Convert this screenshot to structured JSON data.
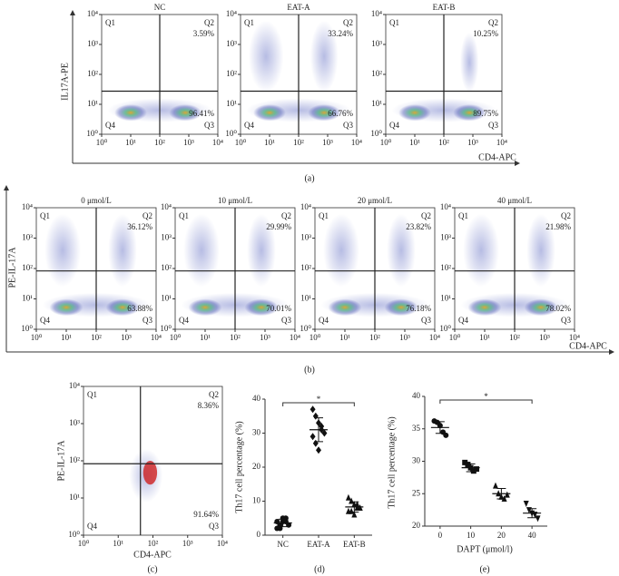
{
  "quadrants": [
    "Q1",
    "Q2",
    "Q3",
    "Q4"
  ],
  "log_lim": [
    1,
    10000
  ],
  "log_ticks": [
    {
      "value": 1,
      "label": "10⁰"
    },
    {
      "value": 10,
      "label": "10¹"
    },
    {
      "value": 100,
      "label": "10²"
    },
    {
      "value": 1000,
      "label": "10³"
    },
    {
      "value": 10000,
      "label": "10⁴"
    }
  ],
  "row_a": {
    "y_label": "IL17A-PE",
    "x_label": "CD4-APC",
    "caption": "(a)",
    "plots": [
      {
        "title": "NC",
        "q2": "3.59%",
        "q3": "96.41%"
      },
      {
        "title": "EAT-A",
        "q2": "33.24%",
        "q3": "66.76%"
      },
      {
        "title": "EAT-B",
        "q2": "10.25%",
        "q3": "89.75%"
      }
    ]
  },
  "row_b": {
    "y_label": "PE-IL-17A",
    "x_label": "CD4-APC",
    "caption": "(b)",
    "plots": [
      {
        "title": "0 μmol/L",
        "q2": "36.12%",
        "q3": "63.88%"
      },
      {
        "title": "10 μmol/L",
        "q2": "29.99%",
        "q3": "70.01%"
      },
      {
        "title": "20 μmol/L",
        "q2": "23.82%",
        "q3": "76.18%"
      },
      {
        "title": "40 μmol/L",
        "q2": "21.98%",
        "q3": "78.02%"
      }
    ]
  },
  "panel_c": {
    "y_label": "PE-IL-17A",
    "x_label": "CD4-APC",
    "caption": "(c)",
    "q2": "8.36%",
    "q3": "91.64%"
  },
  "panel_d": {
    "type": "scatter",
    "y_label": "Th17 cell percentage (%)",
    "caption": "(d)",
    "annotation": "*",
    "ylim": [
      0,
      40
    ],
    "yticks": [
      0,
      10,
      20,
      30,
      40
    ],
    "groups": [
      {
        "name": "NC",
        "values": [
          2,
          3,
          4,
          5,
          3,
          4,
          2,
          5,
          4
        ],
        "mean": 3.6,
        "sd": 1.1
      },
      {
        "name": "EAT-A",
        "values": [
          37,
          35,
          33,
          32,
          30,
          29,
          27,
          25,
          31
        ],
        "mean": 31,
        "sd": 3.5
      },
      {
        "name": "EAT-B",
        "values": [
          11,
          10,
          9,
          8,
          8,
          7,
          7,
          6,
          9
        ],
        "mean": 8.3,
        "sd": 1.5
      }
    ]
  },
  "panel_e": {
    "type": "scatter",
    "y_label": "Th17 cell percentage (%)",
    "x_label": "DAPT (μmol/l)",
    "caption": "(e)",
    "annotation": "*",
    "ylim": [
      20,
      40
    ],
    "yticks": [
      20,
      25,
      30,
      35,
      40
    ],
    "groups": [
      {
        "name": "0",
        "values": [
          36.2,
          36,
          35.5,
          34.5,
          34
        ],
        "mean": 35.2,
        "sd": 0.9
      },
      {
        "name": "10",
        "values": [
          29.8,
          29.5,
          29,
          28.5,
          28.8
        ],
        "mean": 29,
        "sd": 0.6
      },
      {
        "name": "20",
        "values": [
          26.2,
          25,
          24.5,
          24.2,
          24.8
        ],
        "mean": 25,
        "sd": 0.8
      },
      {
        "name": "40",
        "values": [
          23.5,
          22.5,
          22,
          21.8,
          21.2
        ],
        "mean": 22,
        "sd": 0.7
      }
    ]
  }
}
